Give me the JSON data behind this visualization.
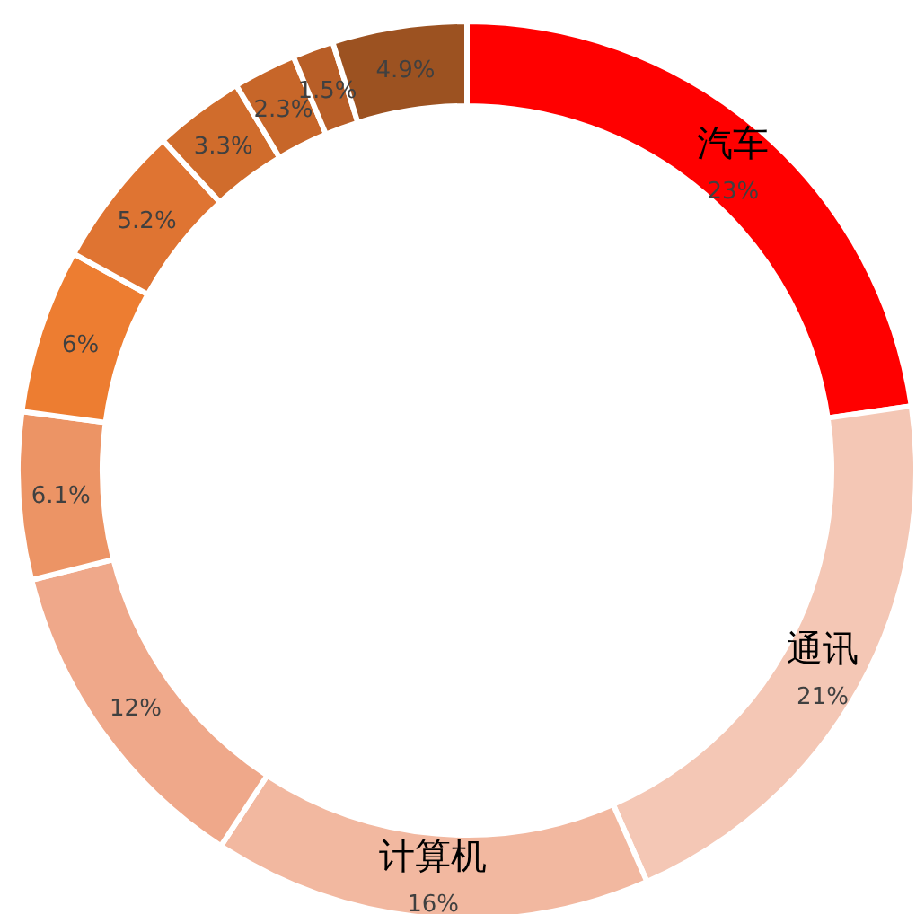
{
  "chart_data": {
    "type": "donut",
    "categories": [
      "汽车",
      "通讯",
      "计算机",
      null,
      null,
      null,
      null,
      null,
      null,
      null,
      null
    ],
    "values": [
      23,
      21,
      16,
      12,
      6.1,
      6,
      5.2,
      3.3,
      2.3,
      1.5,
      4.9
    ],
    "value_labels": [
      "23%",
      "21%",
      "16%",
      "12%",
      "6.1%",
      "6%",
      "5.2%",
      "3.3%",
      "2.3%",
      "1.5%",
      "4.9%"
    ],
    "colors": [
      "#ff0000",
      "#f4c7b5",
      "#f2b8a0",
      "#efa88a",
      "#ec9465",
      "#ed7d31",
      "#df7432",
      "#d06c2c",
      "#c76629",
      "#b85e27",
      "#9c5221"
    ]
  }
}
